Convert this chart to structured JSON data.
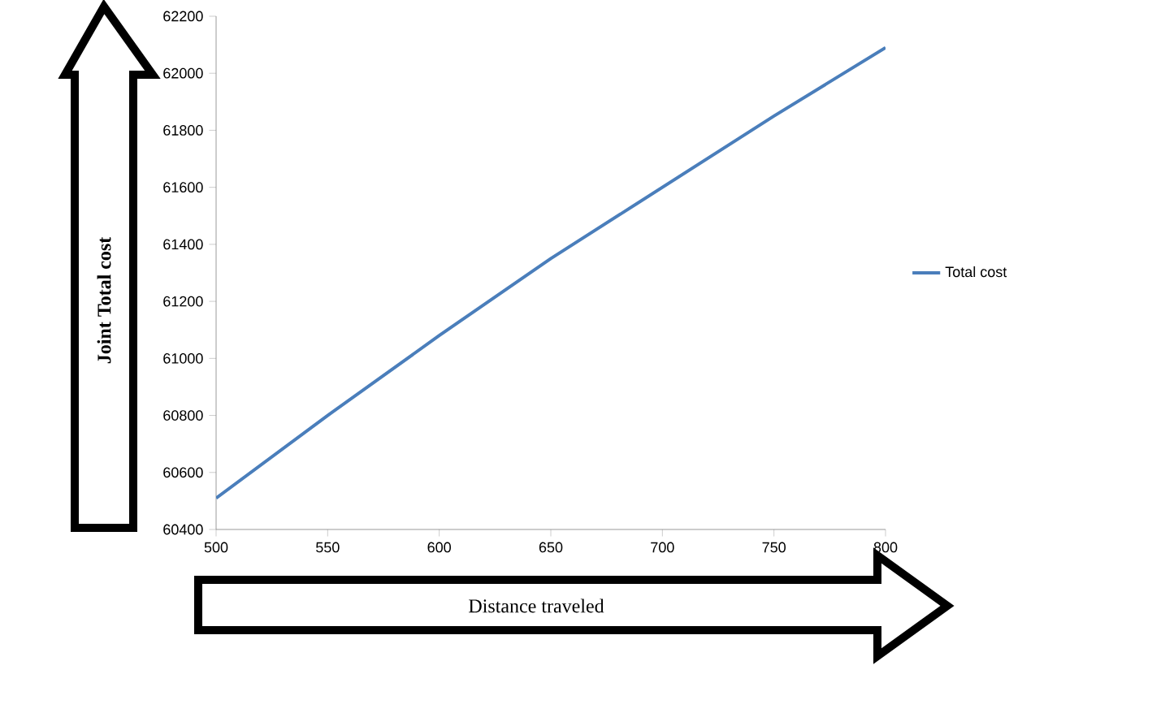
{
  "chart_data": {
    "type": "line",
    "xlabel": "Distance traveled",
    "ylabel": "Joint Total cost",
    "x": [
      500,
      550,
      600,
      650,
      700,
      750,
      800
    ],
    "series": [
      {
        "name": "Total cost",
        "color": "#4a7ebb",
        "values": [
          60510,
          60800,
          61080,
          61350,
          61600,
          61850,
          62090
        ]
      }
    ],
    "xlim": [
      500,
      800
    ],
    "xticks": [
      500,
      550,
      600,
      650,
      700,
      750,
      800
    ],
    "ylim": [
      60400,
      62200
    ],
    "yticks": [
      60400,
      60600,
      60800,
      61000,
      61200,
      61400,
      61600,
      61800,
      62000,
      62200
    ],
    "legend": "right",
    "grid": false,
    "marker": "none",
    "line_style": "solid"
  }
}
